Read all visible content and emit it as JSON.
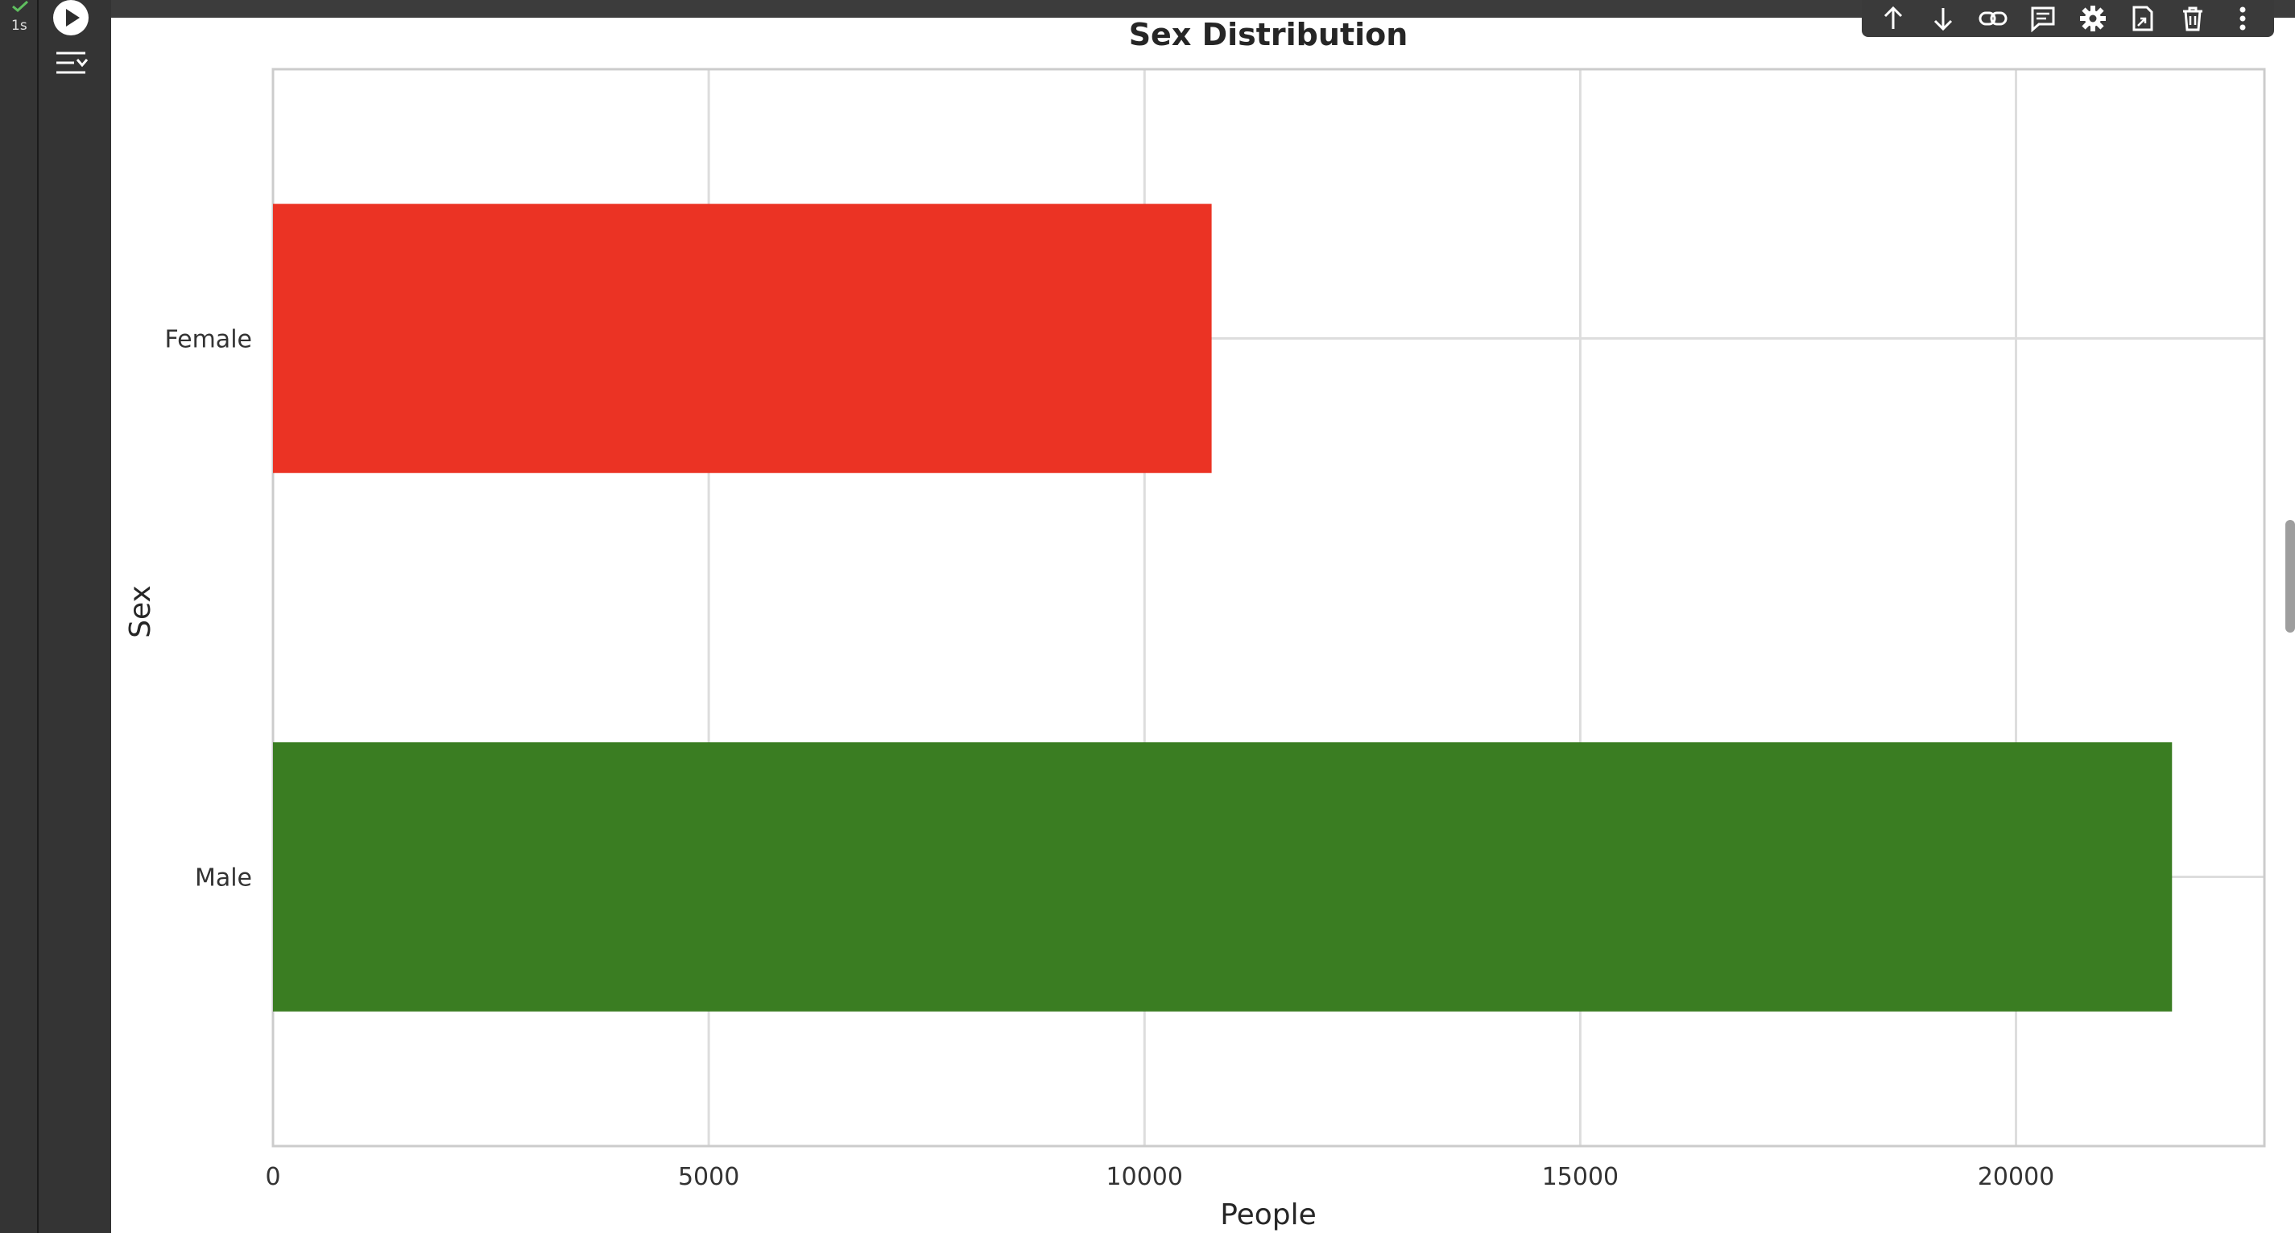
{
  "cell": {
    "run_time": "1s",
    "icons": {
      "status": "check-icon",
      "run": "play-icon",
      "output_toggle": "output-toggle-icon"
    }
  },
  "toolbar": {
    "buttons": [
      {
        "name": "move-up-button",
        "icon": "arrow-up-icon"
      },
      {
        "name": "move-down-button",
        "icon": "arrow-down-icon"
      },
      {
        "name": "link-button",
        "icon": "link-icon"
      },
      {
        "name": "comment-button",
        "icon": "comment-icon"
      },
      {
        "name": "settings-button",
        "icon": "gear-icon"
      },
      {
        "name": "mirror-button",
        "icon": "mirror-cell-icon"
      },
      {
        "name": "delete-button",
        "icon": "trash-icon"
      },
      {
        "name": "more-button",
        "icon": "more-vertical-icon"
      }
    ]
  },
  "chart_data": {
    "type": "bar",
    "orientation": "horizontal",
    "title": "Sex Distribution",
    "xlabel": "People",
    "ylabel": "Sex",
    "categories": [
      "Female",
      "Male"
    ],
    "values": [
      10770,
      21790
    ],
    "colors": [
      "#eb3324",
      "#3a7d22"
    ],
    "xlim": [
      0,
      22850
    ],
    "xticks": [
      0,
      5000,
      10000,
      15000,
      20000
    ],
    "xtick_labels": [
      "0",
      "5000",
      "10000",
      "15000",
      "20000"
    ],
    "grid": true,
    "legend": "none"
  }
}
